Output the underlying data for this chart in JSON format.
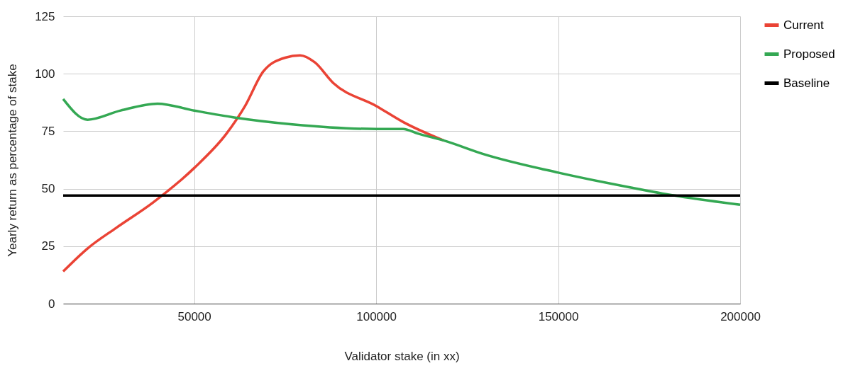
{
  "chart_data": {
    "type": "line",
    "xlabel": "Validator stake (in xx)",
    "ylabel": "Yearly return as percentage of stake",
    "xlim": [
      14000,
      200000
    ],
    "xticks": [
      50000,
      100000,
      150000,
      200000
    ],
    "ylim": [
      0,
      125
    ],
    "yticks": [
      0,
      25,
      50,
      75,
      100,
      125
    ],
    "grid": true,
    "legend": "top right",
    "marker": "none",
    "line_style": "solid",
    "series": [
      {
        "name": "Current",
        "color": "#ea4335",
        "x": [
          14000,
          20700,
          28600,
          38700,
          50000,
          58900,
          64000,
          69000,
          75000,
          79100,
          83100,
          88200,
          100000,
          107400,
          118500
        ],
        "values": [
          14,
          24,
          33,
          44,
          59,
          74,
          86,
          101,
          107,
          108,
          105,
          96,
          86,
          79,
          71
        ]
      },
      {
        "name": "Proposed",
        "color": "#34a853",
        "x": [
          14000,
          20700,
          29800,
          39900,
          50000,
          61000,
          77000,
          100000,
          107400,
          111400,
          118500,
          129600,
          150000,
          170000,
          182000,
          200000
        ],
        "values": [
          89,
          80,
          84,
          87,
          84,
          81,
          78,
          76,
          76,
          74,
          71,
          65,
          57,
          50.5,
          47,
          43
        ]
      },
      {
        "name": "Baseline",
        "color": "#000000",
        "x": [
          14000,
          200000
        ],
        "values": [
          47,
          47
        ]
      }
    ]
  }
}
